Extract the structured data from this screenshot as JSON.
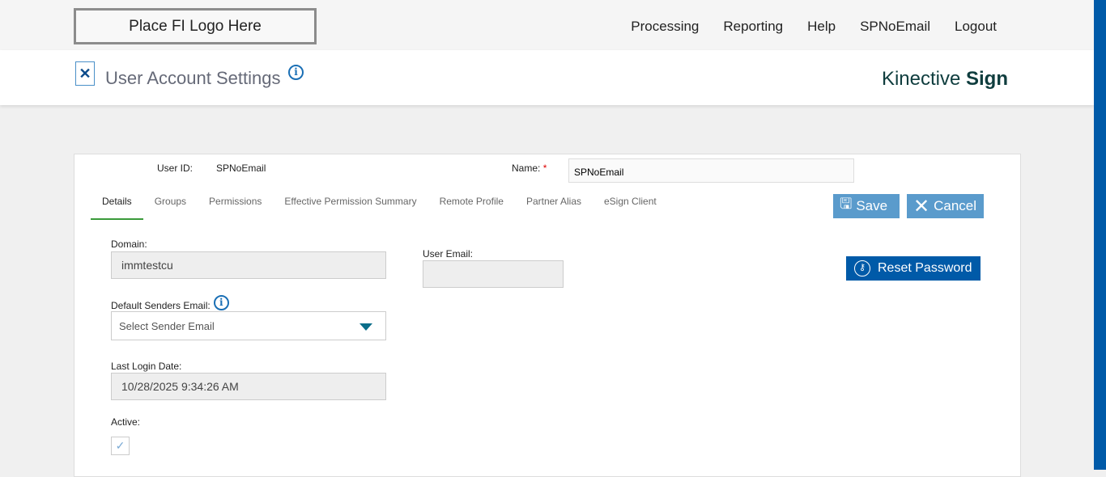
{
  "topbar": {
    "logo": "Place FI Logo Here",
    "nav": [
      "Processing",
      "Reporting",
      "Help",
      "SPNoEmail",
      "Logout"
    ]
  },
  "header": {
    "title": "User Account Settings",
    "brand_light": "Kinective ",
    "brand_bold": "Sign"
  },
  "form": {
    "user_id_label": "User ID:",
    "user_id": "SPNoEmail",
    "name_label": "Name:",
    "required": "*",
    "name_value": "SPNoEmail",
    "tabs": [
      "Details",
      "Groups",
      "Permissions",
      "Effective Permission Summary",
      "Remote Profile",
      "Partner Alias",
      "eSign Client"
    ],
    "save": "Save",
    "cancel": "Cancel",
    "reset": "Reset Password",
    "domain_label": "Domain:",
    "domain": "immtestcu",
    "user_email_label": "User Email:",
    "user_email": "",
    "sender_label": "Default Senders Email:",
    "sender_placeholder": "Select Sender Email",
    "last_login_label": "Last Login Date:",
    "last_login": "10/28/2025 9:34:26 AM",
    "active_label": "Active:",
    "active": true
  },
  "colors": {
    "accent": "#005aa8",
    "button": "#5a9bcc",
    "tab_active": "#3a9a3a"
  }
}
